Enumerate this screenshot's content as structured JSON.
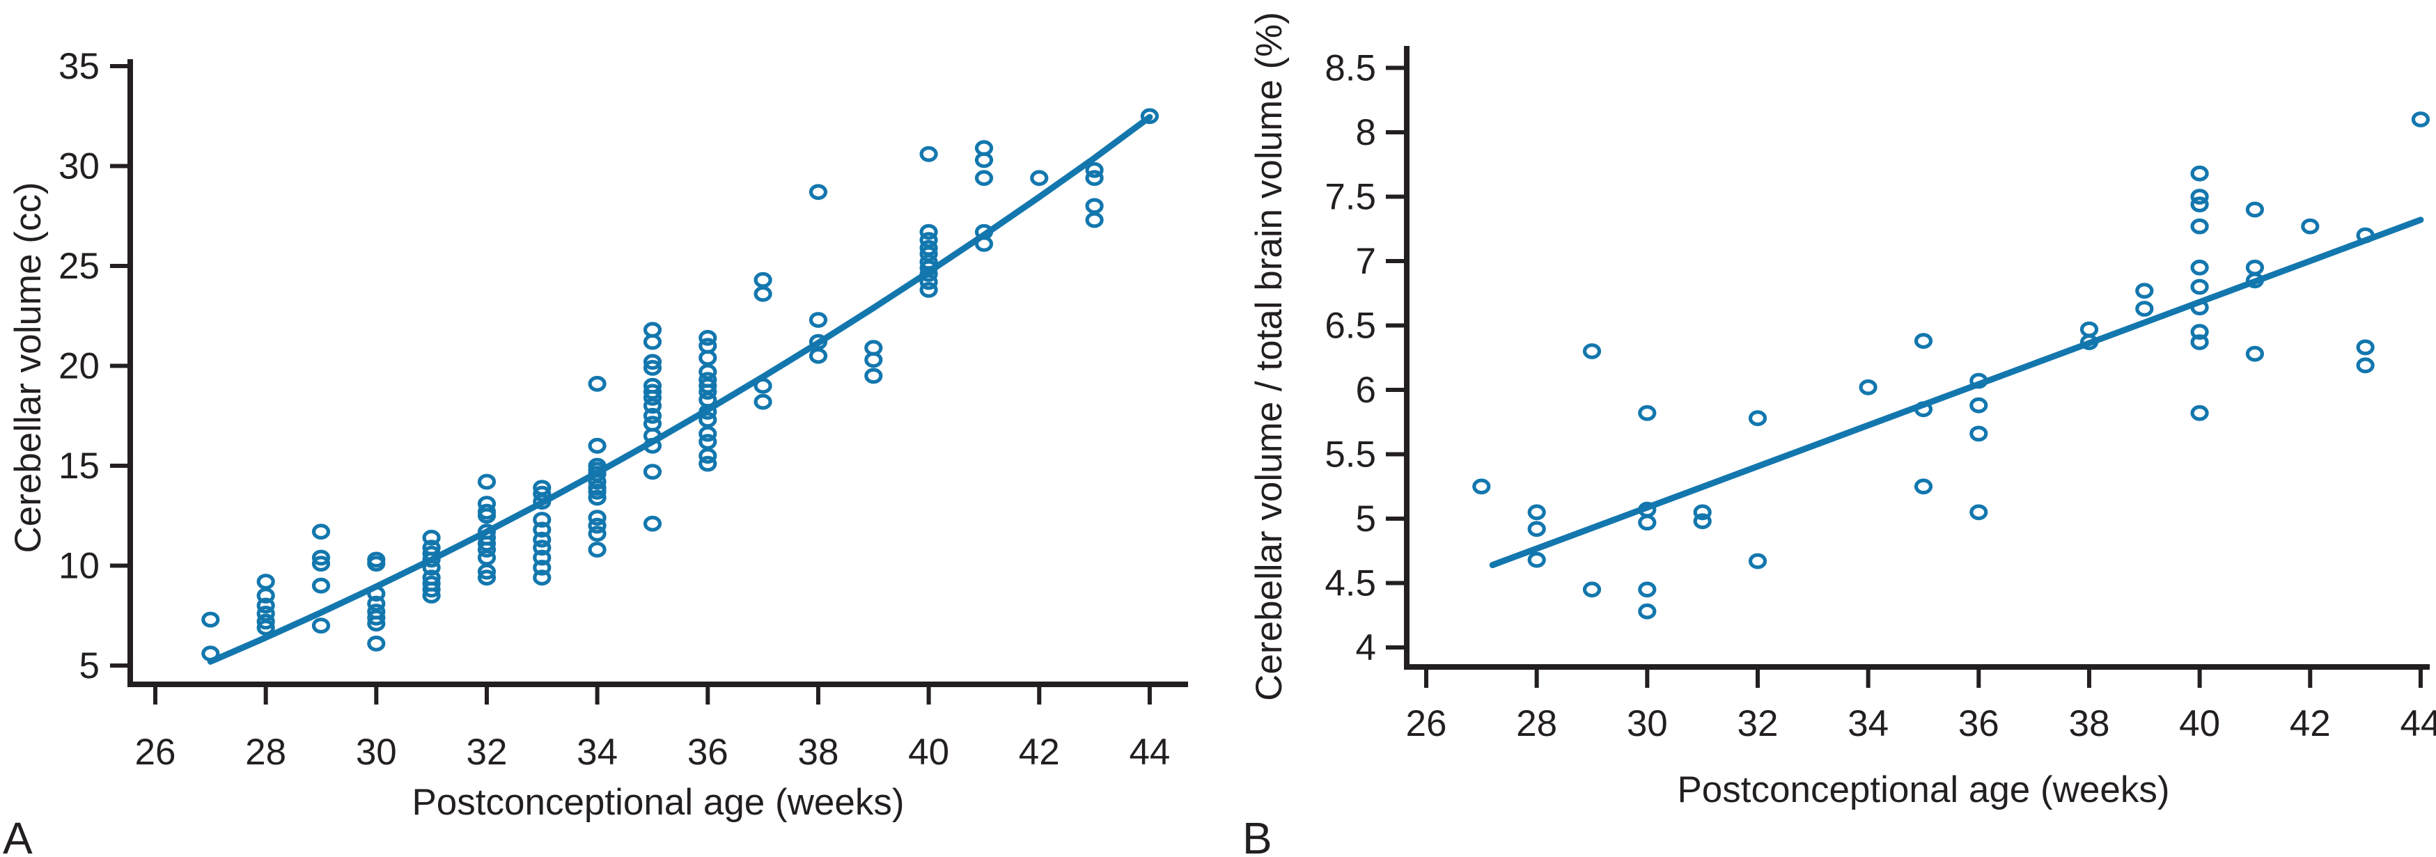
{
  "figure": {
    "background": "#ffffff",
    "accent_color": "#1377ae",
    "axis_color": "#231f20",
    "marker_shape": "open-circle"
  },
  "chart_data": [
    {
      "type": "scatter",
      "panel_label": "A",
      "xlabel": "Postconceptional age (weeks)",
      "ylabel": "Cerebellar volume (cc)",
      "xlim": [
        26,
        44
      ],
      "ylim": [
        5,
        35
      ],
      "xticks": [
        26,
        28,
        30,
        32,
        34,
        36,
        38,
        40,
        42,
        44
      ],
      "yticks": [
        5,
        10,
        15,
        20,
        25,
        30,
        35
      ],
      "grid": false,
      "legend": null,
      "points": [
        [
          27,
          7.3
        ],
        [
          27,
          5.6
        ],
        [
          28,
          9.2
        ],
        [
          28,
          8.5
        ],
        [
          28,
          8.0
        ],
        [
          28,
          7.6
        ],
        [
          28,
          7.2
        ],
        [
          28,
          6.9
        ],
        [
          29,
          11.7
        ],
        [
          29,
          10.4
        ],
        [
          29,
          10.1
        ],
        [
          29,
          9.0
        ],
        [
          29,
          7.0
        ],
        [
          30,
          10.3
        ],
        [
          30,
          10.1
        ],
        [
          30,
          8.6
        ],
        [
          30,
          8.1
        ],
        [
          30,
          7.7
        ],
        [
          30,
          7.4
        ],
        [
          30,
          7.1
        ],
        [
          30,
          6.1
        ],
        [
          31,
          11.4
        ],
        [
          31,
          10.9
        ],
        [
          31,
          10.6
        ],
        [
          31,
          10.3
        ],
        [
          31,
          9.9
        ],
        [
          31,
          9.4
        ],
        [
          31,
          9.1
        ],
        [
          31,
          8.8
        ],
        [
          31,
          8.5
        ],
        [
          32,
          14.2
        ],
        [
          32,
          13.1
        ],
        [
          32,
          12.7
        ],
        [
          32,
          12.5
        ],
        [
          32,
          11.7
        ],
        [
          32,
          11.4
        ],
        [
          32,
          11.1
        ],
        [
          32,
          10.8
        ],
        [
          32,
          10.4
        ],
        [
          32,
          9.7
        ],
        [
          32,
          9.4
        ],
        [
          33,
          13.9
        ],
        [
          33,
          13.6
        ],
        [
          33,
          13.2
        ],
        [
          33,
          12.3
        ],
        [
          33,
          11.8
        ],
        [
          33,
          11.3
        ],
        [
          33,
          10.9
        ],
        [
          33,
          10.4
        ],
        [
          33,
          9.9
        ],
        [
          33,
          9.4
        ],
        [
          34,
          19.1
        ],
        [
          34,
          16.0
        ],
        [
          34,
          15.0
        ],
        [
          34,
          14.8
        ],
        [
          34,
          14.6
        ],
        [
          34,
          14.2
        ],
        [
          34,
          13.9
        ],
        [
          34,
          13.7
        ],
        [
          34,
          13.4
        ],
        [
          34,
          12.4
        ],
        [
          34,
          12.0
        ],
        [
          34,
          11.6
        ],
        [
          34,
          10.8
        ],
        [
          35,
          21.8
        ],
        [
          35,
          21.2
        ],
        [
          35,
          20.2
        ],
        [
          35,
          19.9
        ],
        [
          35,
          19.0
        ],
        [
          35,
          18.7
        ],
        [
          35,
          18.4
        ],
        [
          35,
          18.0
        ],
        [
          35,
          17.5
        ],
        [
          35,
          17.1
        ],
        [
          35,
          16.5
        ],
        [
          35,
          16.0
        ],
        [
          35,
          14.7
        ],
        [
          35,
          12.1
        ],
        [
          36,
          21.4
        ],
        [
          36,
          21.0
        ],
        [
          36,
          20.4
        ],
        [
          36,
          19.7
        ],
        [
          36,
          19.3
        ],
        [
          36,
          19.0
        ],
        [
          36,
          18.7
        ],
        [
          36,
          18.3
        ],
        [
          36,
          17.7
        ],
        [
          36,
          17.3
        ],
        [
          36,
          16.6
        ],
        [
          36,
          16.2
        ],
        [
          36,
          15.5
        ],
        [
          36,
          15.1
        ],
        [
          37,
          24.3
        ],
        [
          37,
          23.6
        ],
        [
          37,
          19.0
        ],
        [
          37,
          18.2
        ],
        [
          38,
          28.7
        ],
        [
          38,
          22.3
        ],
        [
          38,
          21.2
        ],
        [
          38,
          20.5
        ],
        [
          39,
          20.9
        ],
        [
          39,
          20.3
        ],
        [
          39,
          19.5
        ],
        [
          40,
          30.6
        ],
        [
          40,
          26.7
        ],
        [
          40,
          26.3
        ],
        [
          40,
          25.9
        ],
        [
          40,
          25.6
        ],
        [
          40,
          25.2
        ],
        [
          40,
          24.9
        ],
        [
          40,
          24.6
        ],
        [
          40,
          24.2
        ],
        [
          40,
          23.8
        ],
        [
          41,
          30.9
        ],
        [
          41,
          30.3
        ],
        [
          41,
          29.4
        ],
        [
          41,
          26.7
        ],
        [
          41,
          26.1
        ],
        [
          42,
          29.4
        ],
        [
          43,
          29.8
        ],
        [
          43,
          29.4
        ],
        [
          43,
          28.0
        ],
        [
          43,
          27.3
        ],
        [
          44,
          32.5
        ]
      ],
      "trend": {
        "shape": "curve",
        "points": [
          [
            27,
            5.2
          ],
          [
            28,
            6.4
          ],
          [
            29,
            7.65
          ],
          [
            30,
            8.95
          ],
          [
            31,
            10.3
          ],
          [
            32,
            11.7
          ],
          [
            33,
            13.15
          ],
          [
            34,
            14.65
          ],
          [
            35,
            16.2
          ],
          [
            36,
            17.8
          ],
          [
            37,
            19.45
          ],
          [
            38,
            21.15
          ],
          [
            39,
            22.9
          ],
          [
            40,
            24.7
          ],
          [
            41,
            26.55
          ],
          [
            42,
            28.45
          ],
          [
            43,
            30.4
          ],
          [
            44,
            32.45
          ]
        ]
      }
    },
    {
      "type": "scatter",
      "panel_label": "B",
      "xlabel": "Postconceptional age (weeks)",
      "ylabel": "Cerebellar volume / total brain volume (%)",
      "xlim": [
        26,
        44
      ],
      "ylim": [
        4,
        8.5
      ],
      "xticks": [
        26,
        28,
        30,
        32,
        34,
        36,
        38,
        40,
        42,
        44
      ],
      "yticks": [
        4,
        4.5,
        5,
        5.5,
        6,
        6.5,
        7,
        7.5,
        8,
        8.5
      ],
      "grid": false,
      "legend": null,
      "points": [
        [
          27,
          5.25
        ],
        [
          28,
          5.05
        ],
        [
          28,
          4.92
        ],
        [
          28,
          4.68
        ],
        [
          29,
          6.3
        ],
        [
          29,
          4.45
        ],
        [
          30,
          5.82
        ],
        [
          30,
          5.07
        ],
        [
          30,
          4.97
        ],
        [
          30,
          4.45
        ],
        [
          30,
          4.28
        ],
        [
          31,
          5.05
        ],
        [
          31,
          4.98
        ],
        [
          32,
          5.78
        ],
        [
          32,
          4.67
        ],
        [
          34,
          6.02
        ],
        [
          35,
          6.38
        ],
        [
          35,
          5.85
        ],
        [
          35,
          5.25
        ],
        [
          36,
          6.07
        ],
        [
          36,
          5.88
        ],
        [
          36,
          5.66
        ],
        [
          36,
          5.05
        ],
        [
          38,
          6.47
        ],
        [
          38,
          6.37
        ],
        [
          39,
          6.77
        ],
        [
          39,
          6.63
        ],
        [
          40,
          7.68
        ],
        [
          40,
          7.5
        ],
        [
          40,
          7.44
        ],
        [
          40,
          7.27
        ],
        [
          40,
          6.95
        ],
        [
          40,
          6.8
        ],
        [
          40,
          6.64
        ],
        [
          40,
          6.45
        ],
        [
          40,
          6.37
        ],
        [
          40,
          5.82
        ],
        [
          41,
          7.4
        ],
        [
          41,
          6.95
        ],
        [
          41,
          6.85
        ],
        [
          41,
          6.28
        ],
        [
          42,
          7.27
        ],
        [
          43,
          7.2
        ],
        [
          43,
          6.33
        ],
        [
          43,
          6.19
        ],
        [
          44,
          8.1
        ]
      ],
      "trend": {
        "shape": "line",
        "points": [
          [
            27.2,
            4.64
          ],
          [
            44,
            7.32
          ]
        ]
      }
    }
  ]
}
